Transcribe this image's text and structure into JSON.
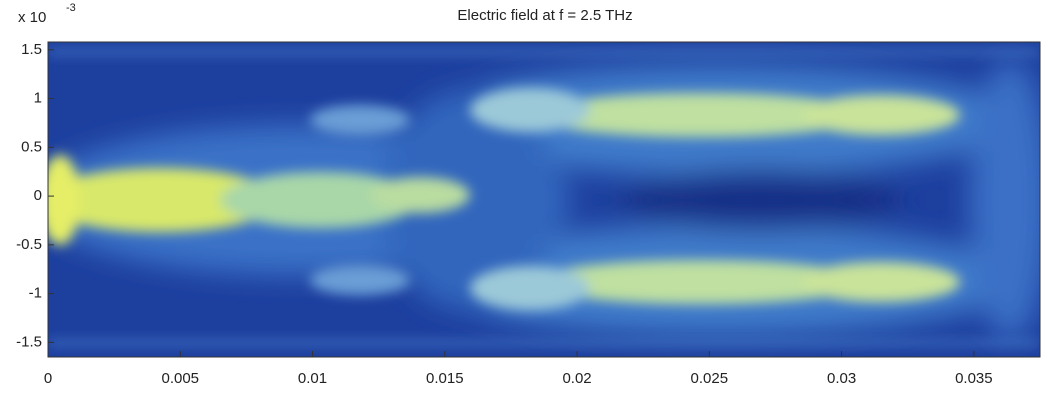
{
  "chart_data": {
    "type": "heatmap",
    "title": "Electric field at f = 2.5 THz",
    "y_multiplier": "x 10",
    "y_multiplier_exponent": "-3",
    "xlim": [
      0,
      0.0375
    ],
    "xticks": [
      0,
      0.005,
      0.01,
      0.015,
      0.02,
      0.025,
      0.03,
      0.035
    ],
    "ylim": [
      -1.65,
      1.58
    ],
    "yticks": [
      1.5,
      1,
      0.5,
      0,
      -0.5,
      -1,
      -1.5
    ]
  }
}
